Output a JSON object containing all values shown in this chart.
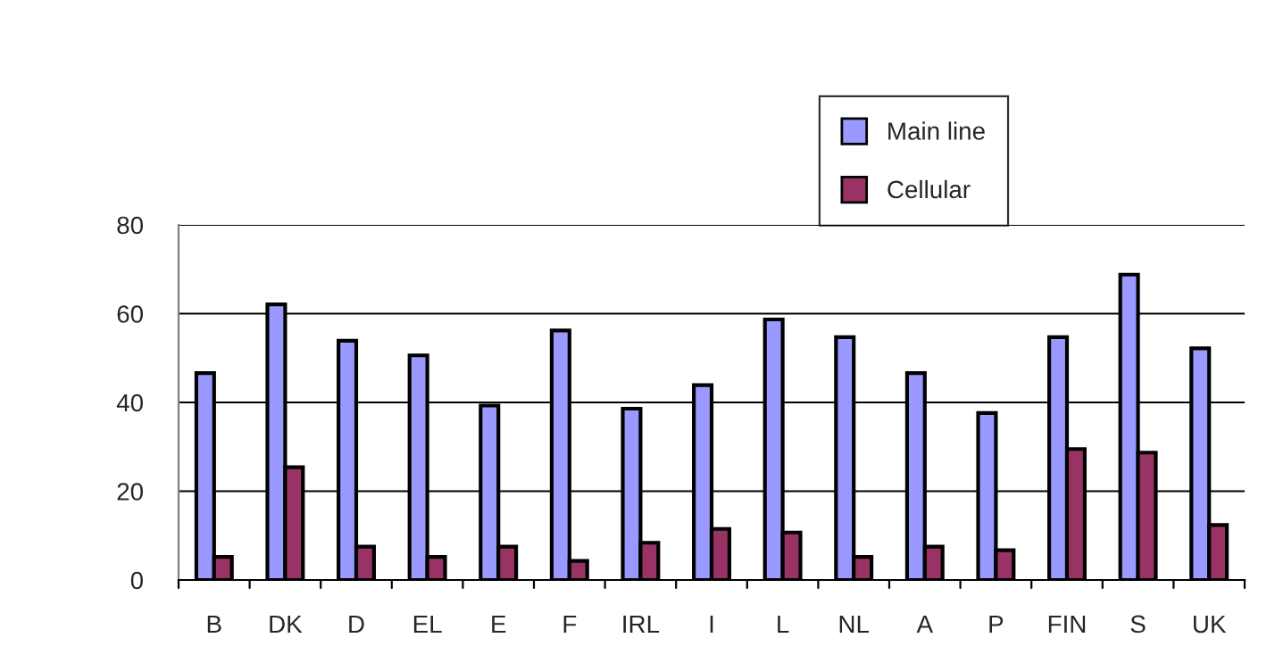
{
  "chart_data": {
    "type": "bar",
    "categories": [
      "B",
      "DK",
      "D",
      "EL",
      "E",
      "F",
      "IRL",
      "I",
      "L",
      "NL",
      "A",
      "P",
      "FIN",
      "S",
      "UK"
    ],
    "series": [
      {
        "name": "Main line",
        "color": "#9999ff",
        "values": [
          46.6,
          62.1,
          53.9,
          50.6,
          39.3,
          56.2,
          38.6,
          43.9,
          58.7,
          54.7,
          46.6,
          37.6,
          54.7,
          68.8,
          52.2
        ]
      },
      {
        "name": "Cellular",
        "color": "#993366",
        "values": [
          5.2,
          25.4,
          7.5,
          5.2,
          7.5,
          4.3,
          8.4,
          11.5,
          10.7,
          5.2,
          7.5,
          6.7,
          29.5,
          28.7,
          12.4
        ]
      }
    ],
    "ylim": [
      0,
      80
    ],
    "yticks": [
      0,
      20,
      40,
      60,
      80
    ],
    "grid": "y",
    "legend": "top right"
  }
}
